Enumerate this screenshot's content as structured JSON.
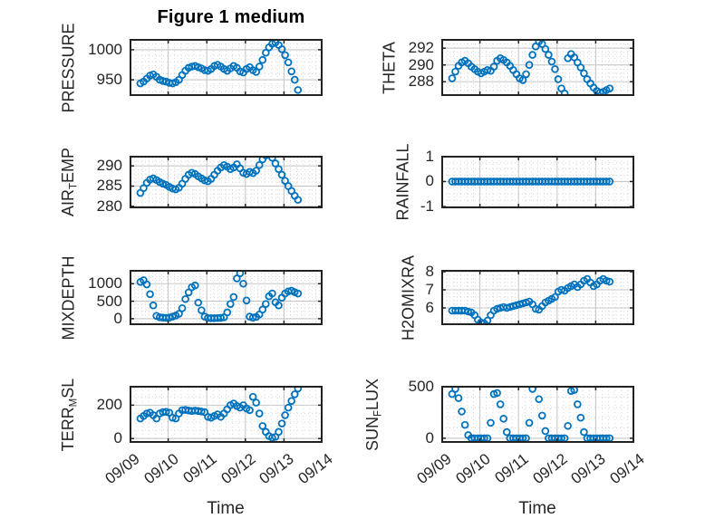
{
  "figure": {
    "title": "Figure 1 medium",
    "xlabel": "Time",
    "colors": {
      "marker": "#0072BD",
      "axis": "#222222",
      "text": "#262626",
      "grid_major": "#c8c8c8",
      "grid_minor": "#d8d8d8",
      "background": "#ffffff"
    }
  },
  "chart_data": {
    "type": "scatter",
    "marker": "open-circle",
    "grid": "major-solid, minor-dotted",
    "x": {
      "label": "Time",
      "lim": [
        0,
        5
      ],
      "tick_labels": [
        "09/09",
        "09/10",
        "09/11",
        "09/12",
        "09/13",
        "09/14"
      ],
      "start": 0.28,
      "step": 0.0833,
      "minor_div": 6
    },
    "panels": [
      {
        "name": "PRESSURE",
        "col": 0,
        "row": 0,
        "ylabel_parts": [
          {
            "text": "PRESSURE",
            "sub": false
          }
        ],
        "ylim": [
          923,
          1018
        ],
        "yticks": [
          950,
          1000
        ],
        "y_minor_div": 5,
        "values": [
          944,
          947,
          952,
          957,
          959,
          955,
          950,
          948,
          947,
          945,
          944,
          946,
          950,
          958,
          965,
          970,
          972,
          973,
          971,
          969,
          966,
          965,
          968,
          973,
          975,
          972,
          968,
          965,
          969,
          973,
          970,
          964,
          962,
          968,
          971,
          966,
          963,
          972,
          983,
          995,
          1004,
          1010,
          1012,
          1008,
          1001,
          991,
          979,
          964,
          950,
          933
        ]
      },
      {
        "name": "THETA",
        "col": 1,
        "row": 0,
        "ylabel_parts": [
          {
            "text": "THETA",
            "sub": false
          }
        ],
        "ylim": [
          286.3,
          293.1
        ],
        "yticks": [
          288,
          290,
          292
        ],
        "y_minor_div": 4,
        "values": [
          288.4,
          289.2,
          289.9,
          290.3,
          290.5,
          290.2,
          289.8,
          289.5,
          289.2,
          289.0,
          289.2,
          289.4,
          289.3,
          289.8,
          290.5,
          290.8,
          290.6,
          290.3,
          289.9,
          289.4,
          288.9,
          288.4,
          288.2,
          288.9,
          290.0,
          291.2,
          292.2,
          292.8,
          292.5,
          291.9,
          291.2,
          290.4,
          289.5,
          288.3,
          287.2,
          286.6,
          290.8,
          291.3,
          290.9,
          290.3,
          289.7,
          289.0,
          288.3,
          287.8,
          287.3,
          286.9,
          286.7,
          286.8,
          287.0,
          287.2
        ]
      },
      {
        "name": "AIR_TEMP",
        "col": 0,
        "row": 1,
        "ylabel_parts": [
          {
            "text": "AIR",
            "sub": false
          },
          {
            "text": "T",
            "sub": true
          },
          {
            "text": "EMP",
            "sub": false
          }
        ],
        "ylim": [
          279.5,
          292.5
        ],
        "yticks": [
          280,
          285,
          290
        ],
        "y_minor_div": 5,
        "values": [
          283.3,
          284.5,
          285.8,
          286.6,
          286.9,
          286.5,
          286.0,
          285.6,
          285.3,
          284.8,
          284.4,
          284.2,
          284.6,
          285.6,
          286.8,
          287.8,
          288.3,
          288.0,
          287.4,
          286.9,
          286.4,
          286.2,
          286.8,
          287.8,
          288.8,
          289.6,
          290.2,
          289.8,
          289.2,
          289.6,
          290.4,
          289.4,
          288.3,
          288.0,
          288.5,
          288.2,
          288.8,
          290.2,
          291.6,
          292.6,
          292.9,
          292.0,
          290.6,
          289.2,
          287.8,
          286.3,
          285.0,
          283.8,
          282.6,
          281.6
        ]
      },
      {
        "name": "RAINFALL",
        "col": 1,
        "row": 1,
        "ylabel_parts": [
          {
            "text": "RAINFALL",
            "sub": false
          }
        ],
        "ylim": [
          -1.07,
          1.03
        ],
        "yticks": [
          -1,
          0,
          1
        ],
        "y_minor_div": 4,
        "values": [
          0,
          0,
          0,
          0,
          0,
          0,
          0,
          0,
          0,
          0,
          0,
          0,
          0,
          0,
          0,
          0,
          0,
          0,
          0,
          0,
          0,
          0,
          0,
          0,
          0,
          0,
          0,
          0,
          0,
          0,
          0,
          0,
          0,
          0,
          0,
          0,
          0,
          0,
          0,
          0,
          0,
          0,
          0,
          0,
          0,
          0,
          0,
          0,
          0,
          0
        ]
      },
      {
        "name": "MIXDEPTH",
        "col": 0,
        "row": 2,
        "ylabel_parts": [
          {
            "text": "MIXDEPTH",
            "sub": false
          }
        ],
        "ylim": [
          -184,
          1395
        ],
        "yticks": [
          0,
          500,
          1000
        ],
        "y_minor_div": 5,
        "values": [
          1050,
          1100,
          980,
          700,
          380,
          80,
          40,
          30,
          25,
          30,
          60,
          90,
          140,
          300,
          560,
          750,
          900,
          950,
          460,
          240,
          60,
          20,
          15,
          15,
          20,
          25,
          40,
          180,
          420,
          620,
          1150,
          1300,
          1000,
          520,
          60,
          30,
          50,
          120,
          260,
          420,
          640,
          720,
          470,
          380,
          600,
          720,
          780,
          800,
          760,
          720
        ]
      },
      {
        "name": "H2OMIXRA",
        "col": 1,
        "row": 2,
        "ylabel_parts": [
          {
            "text": "H2OMIXRA",
            "sub": false
          }
        ],
        "ylim": [
          5.05,
          8.1
        ],
        "yticks": [
          6,
          7,
          8
        ],
        "y_minor_div": 5,
        "values": [
          5.85,
          5.85,
          5.85,
          5.85,
          5.85,
          5.8,
          5.75,
          5.6,
          5.35,
          5.2,
          5.15,
          5.3,
          5.6,
          5.85,
          5.95,
          6.0,
          6.05,
          6.0,
          6.05,
          6.1,
          6.15,
          6.2,
          6.25,
          6.3,
          6.35,
          6.2,
          5.95,
          5.9,
          6.1,
          6.3,
          6.4,
          6.5,
          6.6,
          6.9,
          7.0,
          6.95,
          7.1,
          7.2,
          7.3,
          7.15,
          7.3,
          7.5,
          7.6,
          7.4,
          7.2,
          7.3,
          7.5,
          7.6,
          7.5,
          7.45
        ]
      },
      {
        "name": "TERR_MSL",
        "col": 0,
        "row": 3,
        "ylabel_parts": [
          {
            "text": "TERR",
            "sub": false
          },
          {
            "text": "M",
            "sub": true
          },
          {
            "text": "SL",
            "sub": false
          }
        ],
        "ylim": [
          -26,
          316
        ],
        "yticks": [
          0,
          200
        ],
        "y_minor_div": 4,
        "values": [
          120,
          135,
          150,
          155,
          140,
          120,
          150,
          158,
          160,
          155,
          125,
          120,
          150,
          170,
          172,
          168,
          165,
          168,
          165,
          162,
          158,
          130,
          125,
          135,
          145,
          130,
          150,
          175,
          200,
          210,
          195,
          185,
          200,
          180,
          170,
          250,
          215,
          150,
          75,
          40,
          15,
          5,
          10,
          40,
          90,
          140,
          185,
          225,
          265,
          300
        ]
      },
      {
        "name": "SUN_FLUX",
        "col": 1,
        "row": 3,
        "ylabel_parts": [
          {
            "text": "SUN",
            "sub": false
          },
          {
            "text": "F",
            "sub": true
          },
          {
            "text": "LUX",
            "sub": false
          }
        ],
        "ylim": [
          -45,
          510
        ],
        "yticks": [
          0,
          500
        ],
        "y_minor_div": 5,
        "values": [
          430,
          480,
          390,
          260,
          130,
          30,
          0,
          0,
          0,
          0,
          0,
          0,
          150,
          430,
          440,
          330,
          190,
          60,
          0,
          0,
          0,
          0,
          0,
          0,
          150,
          480,
          525,
          380,
          220,
          70,
          0,
          0,
          0,
          0,
          0,
          0,
          120,
          460,
          470,
          330,
          200,
          60,
          0,
          0,
          0,
          0,
          0,
          0,
          0,
          0
        ]
      }
    ]
  }
}
